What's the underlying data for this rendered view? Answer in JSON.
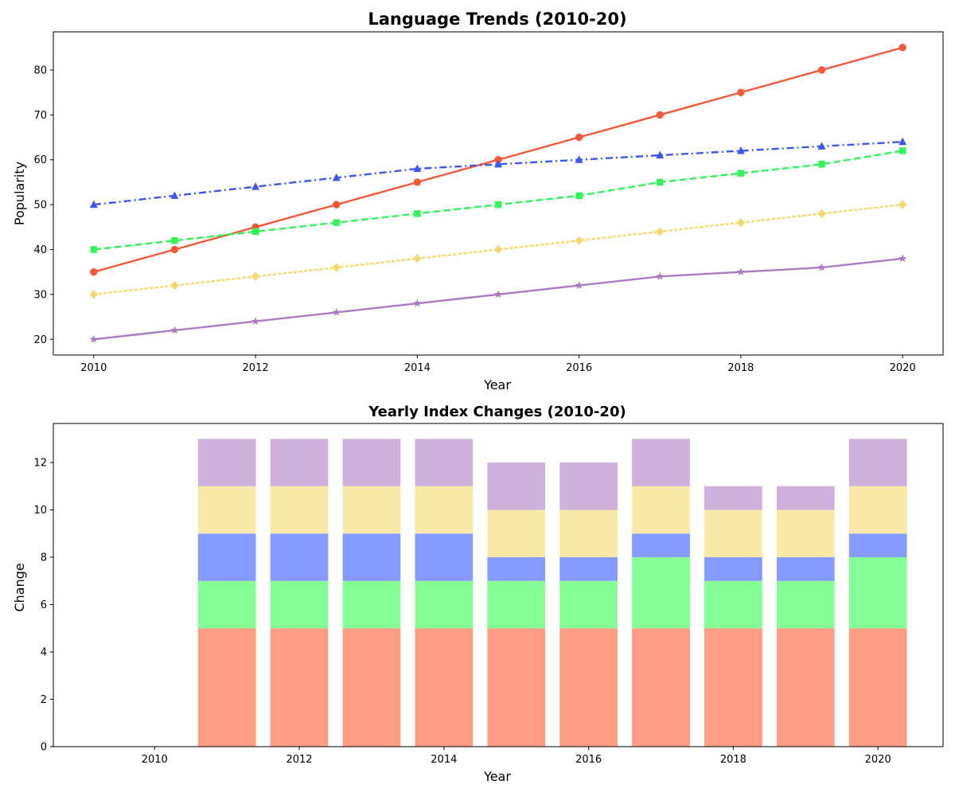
{
  "chart_data": [
    {
      "type": "line",
      "title": "Language Trends (2010-20)",
      "xlabel": "Year",
      "ylabel": "Popularity",
      "xlim": [
        2009.5,
        2020.5
      ],
      "ylim": [
        16.5,
        88.5
      ],
      "xticks": [
        2010,
        2012,
        2014,
        2016,
        2018,
        2020
      ],
      "yticks": [
        20,
        30,
        40,
        50,
        60,
        70,
        80
      ],
      "grid": false,
      "x": [
        2010,
        2011,
        2012,
        2013,
        2014,
        2015,
        2016,
        2017,
        2018,
        2019,
        2020
      ],
      "series": [
        {
          "values": [
            35,
            40,
            45,
            50,
            55,
            60,
            65,
            70,
            75,
            80,
            85
          ],
          "color": "#f4583a",
          "dash": "solid",
          "marker": "circle"
        },
        {
          "values": [
            50,
            52,
            54,
            56,
            58,
            59,
            60,
            61,
            62,
            63,
            64
          ],
          "color": "#3a56f4",
          "dash": "dashdot",
          "marker": "triangle"
        },
        {
          "values": [
            40,
            42,
            44,
            46,
            48,
            50,
            52,
            55,
            57,
            59,
            62
          ],
          "color": "#33f45c",
          "dash": "dashed",
          "marker": "square"
        },
        {
          "values": [
            30,
            32,
            34,
            36,
            38,
            40,
            42,
            44,
            46,
            48,
            50
          ],
          "color": "#f7d86f",
          "dash": "dotted",
          "marker": "diamond"
        },
        {
          "values": [
            20,
            22,
            24,
            26,
            28,
            30,
            32,
            34,
            35,
            36,
            38
          ],
          "color": "#aa7bc3",
          "dash": "solid",
          "marker": "star"
        }
      ]
    },
    {
      "type": "bar",
      "stacked": true,
      "title": "Yearly Index Changes (2010-20)",
      "xlabel": "Year",
      "ylabel": "Change",
      "xlim": [
        2008.6,
        2020.9
      ],
      "ylim": [
        0,
        13.65
      ],
      "xticks": [
        2010,
        2012,
        2014,
        2016,
        2018,
        2020
      ],
      "yticks": [
        0,
        2,
        4,
        6,
        8,
        10,
        12
      ],
      "grid": false,
      "bar_width": 0.8,
      "x": [
        2010,
        2011,
        2012,
        2013,
        2014,
        2015,
        2016,
        2017,
        2018,
        2019,
        2020
      ],
      "series": [
        {
          "values": [
            0,
            5,
            5,
            5,
            5,
            5,
            5,
            5,
            5,
            5,
            5
          ],
          "color": "#ff9c86"
        },
        {
          "values": [
            0,
            2,
            2,
            2,
            2,
            2,
            2,
            3,
            2,
            2,
            3
          ],
          "color": "#85ff95"
        },
        {
          "values": [
            0,
            2,
            2,
            2,
            2,
            1,
            1,
            1,
            1,
            1,
            1
          ],
          "color": "#869bff"
        },
        {
          "values": [
            0,
            2,
            2,
            2,
            2,
            2,
            2,
            2,
            2,
            2,
            2
          ],
          "color": "#f9e9a9"
        },
        {
          "values": [
            0,
            2,
            2,
            2,
            2,
            2,
            2,
            2,
            1,
            1,
            2
          ],
          "color": "#cfafdc"
        }
      ]
    }
  ]
}
